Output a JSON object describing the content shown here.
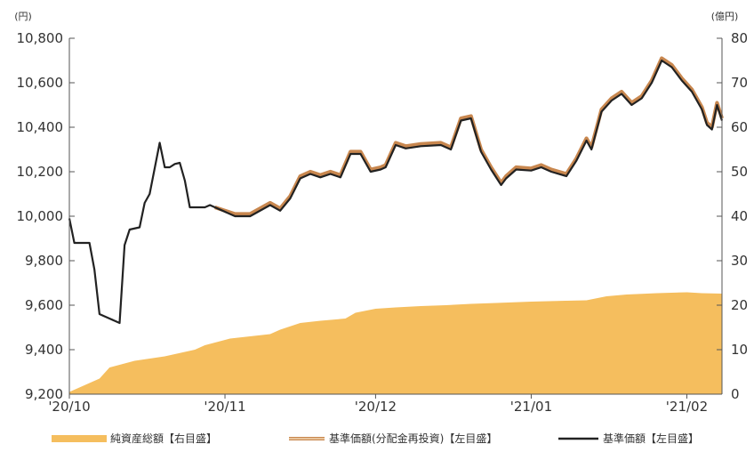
{
  "chart_data": {
    "type": "line",
    "left_axis": {
      "unit": "(円)",
      "ticks": [
        "10,800",
        "10,600",
        "10,400",
        "10,200",
        "10,000",
        "9,800",
        "9,600",
        "9,400",
        "9,200"
      ],
      "range": [
        9200,
        10800
      ]
    },
    "right_axis": {
      "unit": "(億円)",
      "ticks": [
        "80",
        "70",
        "60",
        "50",
        "40",
        "30",
        "20",
        "10",
        "0"
      ],
      "range": [
        0,
        80
      ]
    },
    "x_axis": {
      "range": [
        "2020-10-01",
        "2021-02-08"
      ],
      "ticks": [
        {
          "date": "2020-10-01",
          "label": "'20/10"
        },
        {
          "date": "2020-11-01",
          "label": "'20/11"
        },
        {
          "date": "2020-12-01",
          "label": "'20/12"
        },
        {
          "date": "2021-01-01",
          "label": "'21/01"
        },
        {
          "date": "2021-02-01",
          "label": "'21/02"
        }
      ]
    },
    "grid": false,
    "legend_position": "bottom",
    "series": [
      {
        "name": "純資産総額【右目盛】",
        "kind": "area",
        "axis": "right",
        "color": "#F5BE5E",
        "x": [
          "2020-10-01",
          "2020-10-05",
          "2020-10-07",
          "2020-10-09",
          "2020-10-14",
          "2020-10-20",
          "2020-10-26",
          "2020-10-28",
          "2020-11-02",
          "2020-11-06",
          "2020-11-10",
          "2020-11-12",
          "2020-11-16",
          "2020-11-20",
          "2020-11-25",
          "2020-11-27",
          "2020-12-01",
          "2020-12-05",
          "2020-12-10",
          "2020-12-15",
          "2020-12-20",
          "2020-12-25",
          "2021-01-01",
          "2021-01-08",
          "2021-01-12",
          "2021-01-16",
          "2021-01-20",
          "2021-01-26",
          "2021-02-01",
          "2021-02-04",
          "2021-02-08"
        ],
        "values": [
          0.5,
          2.5,
          3.5,
          6,
          7.5,
          8.5,
          10,
          11,
          12.5,
          13,
          13.5,
          14.5,
          16,
          16.5,
          17,
          18.3,
          19.2,
          19.5,
          19.8,
          20.0,
          20.3,
          20.5,
          20.8,
          21.0,
          21.1,
          22.0,
          22.4,
          22.7,
          22.9,
          22.7,
          22.6
        ]
      },
      {
        "name": "基準価額(分配金再投資)【左目盛】",
        "kind": "line",
        "axis": "left",
        "color": "#C8874F",
        "x": [
          "2020-10-30",
          "2020-11-03",
          "2020-11-06",
          "2020-11-10",
          "2020-11-12",
          "2020-11-14",
          "2020-11-16",
          "2020-11-18",
          "2020-11-20",
          "2020-11-22",
          "2020-11-24",
          "2020-11-26",
          "2020-11-28",
          "2020-11-30",
          "2020-12-02",
          "2020-12-03",
          "2020-12-05",
          "2020-12-07",
          "2020-12-10",
          "2020-12-14",
          "2020-12-16",
          "2020-12-18",
          "2020-12-20",
          "2020-12-22",
          "2020-12-24",
          "2020-12-26",
          "2020-12-27",
          "2020-12-29",
          "2021-01-01",
          "2021-01-03",
          "2021-01-05",
          "2021-01-08",
          "2021-01-10",
          "2021-01-12",
          "2021-01-13",
          "2021-01-15",
          "2021-01-17",
          "2021-01-19",
          "2021-01-21",
          "2021-01-23",
          "2021-01-25",
          "2021-01-27",
          "2021-01-29",
          "2021-01-31",
          "2021-02-02",
          "2021-02-04",
          "2021-02-05",
          "2021-02-06",
          "2021-02-07",
          "2021-02-08"
        ],
        "values": [
          10040,
          10010,
          10010,
          10060,
          10035,
          10090,
          10180,
          10200,
          10185,
          10200,
          10185,
          10290,
          10290,
          10210,
          10220,
          10230,
          10330,
          10315,
          10325,
          10330,
          10310,
          10440,
          10450,
          10300,
          10220,
          10150,
          10180,
          10220,
          10215,
          10230,
          10210,
          10190,
          10260,
          10350,
          10310,
          10480,
          10530,
          10560,
          10510,
          10540,
          10610,
          10710,
          10680,
          10620,
          10570,
          10490,
          10420,
          10400,
          10510,
          10440
        ]
      },
      {
        "name": "基準価額【左目盛】",
        "kind": "line",
        "axis": "left",
        "color": "#222222",
        "x": [
          "2020-10-01",
          "2020-10-02",
          "2020-10-03",
          "2020-10-05",
          "2020-10-06",
          "2020-10-07",
          "2020-10-08",
          "2020-10-09",
          "2020-10-11",
          "2020-10-12",
          "2020-10-13",
          "2020-10-15",
          "2020-10-16",
          "2020-10-17",
          "2020-10-19",
          "2020-10-20",
          "2020-10-21",
          "2020-10-22",
          "2020-10-23",
          "2020-10-24",
          "2020-10-25",
          "2020-10-27",
          "2020-10-28",
          "2020-10-29",
          "2020-10-30",
          "2020-11-03",
          "2020-11-06",
          "2020-11-10",
          "2020-11-12",
          "2020-11-14",
          "2020-11-16",
          "2020-11-18",
          "2020-11-20",
          "2020-11-22",
          "2020-11-24",
          "2020-11-26",
          "2020-11-28",
          "2020-11-30",
          "2020-12-02",
          "2020-12-03",
          "2020-12-05",
          "2020-12-07",
          "2020-12-10",
          "2020-12-14",
          "2020-12-16",
          "2020-12-18",
          "2020-12-20",
          "2020-12-22",
          "2020-12-24",
          "2020-12-26",
          "2020-12-27",
          "2020-12-29",
          "2021-01-01",
          "2021-01-03",
          "2021-01-05",
          "2021-01-08",
          "2021-01-10",
          "2021-01-12",
          "2021-01-13",
          "2021-01-15",
          "2021-01-17",
          "2021-01-19",
          "2021-01-21",
          "2021-01-23",
          "2021-01-25",
          "2021-01-27",
          "2021-01-29",
          "2021-01-31",
          "2021-02-02",
          "2021-02-04",
          "2021-02-05",
          "2021-02-06",
          "2021-02-07",
          "2021-02-08"
        ],
        "values": [
          9990,
          9880,
          9880,
          9880,
          9760,
          9560,
          9550,
          9540,
          9520,
          9870,
          9940,
          9950,
          10060,
          10100,
          10330,
          10220,
          10220,
          10235,
          10240,
          10160,
          10040,
          10040,
          10040,
          10050,
          10040,
          10000,
          10000,
          10050,
          10025,
          10080,
          10170,
          10190,
          10175,
          10190,
          10175,
          10280,
          10280,
          10200,
          10210,
          10220,
          10320,
          10305,
          10315,
          10320,
          10300,
          10430,
          10440,
          10290,
          10210,
          10140,
          10170,
          10210,
          10205,
          10220,
          10200,
          10180,
          10250,
          10340,
          10300,
          10470,
          10520,
          10550,
          10500,
          10530,
          10600,
          10700,
          10670,
          10610,
          10560,
          10480,
          10410,
          10390,
          10500,
          10430
        ]
      }
    ]
  }
}
